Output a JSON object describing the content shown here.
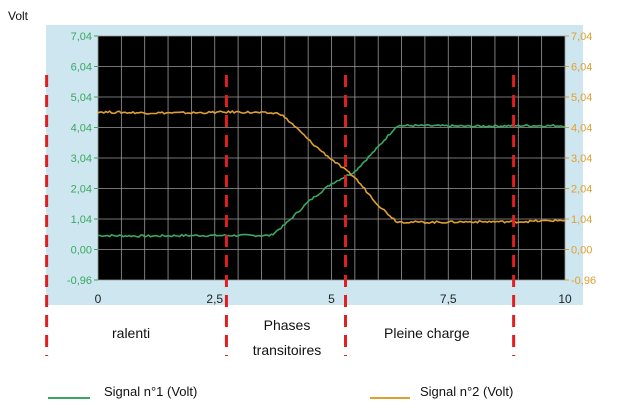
{
  "chart_data": {
    "type": "line",
    "ylabel": "Volt",
    "xlim": [
      0,
      10
    ],
    "ylim": [
      -0.96,
      7.04
    ],
    "x_ticks": [
      "0",
      "2,5",
      "5",
      "7,5",
      "10"
    ],
    "y_ticks": [
      "7,04",
      "6,04",
      "5,04",
      "4,04",
      "3,04",
      "2,04",
      "1,04",
      "0,00",
      "-0,96"
    ],
    "grid": true,
    "background": "#000000",
    "series": [
      {
        "name": "Signal n°1 (Volt)",
        "color": "#3aa860",
        "x": [
          0,
          1,
          2,
          3,
          3.7,
          4,
          4.5,
          5,
          5.5,
          6,
          6.4,
          7,
          8,
          9,
          10
        ],
        "y": [
          0.5,
          0.48,
          0.5,
          0.5,
          0.5,
          0.85,
          1.6,
          2.2,
          2.6,
          3.4,
          4.1,
          4.1,
          4.08,
          4.1,
          4.1
        ]
      },
      {
        "name": "Signal n°2 (Volt)",
        "color": "#e0a030",
        "x": [
          0,
          1,
          2,
          3,
          3.9,
          4.2,
          4.6,
          5,
          5.5,
          6,
          6.4,
          7,
          8,
          9,
          10
        ],
        "y": [
          4.55,
          4.52,
          4.52,
          4.55,
          4.5,
          4.1,
          3.5,
          3.0,
          2.4,
          1.5,
          0.95,
          0.93,
          0.95,
          0.95,
          1.0
        ]
      }
    ],
    "phase_labels": [
      "ralenti",
      "Phases",
      "transitoires",
      "Pleine charge"
    ],
    "phase_dividers_x": [
      -1.1,
      2.75,
      5.3,
      8.9
    ],
    "divider_color": "#e02020"
  }
}
